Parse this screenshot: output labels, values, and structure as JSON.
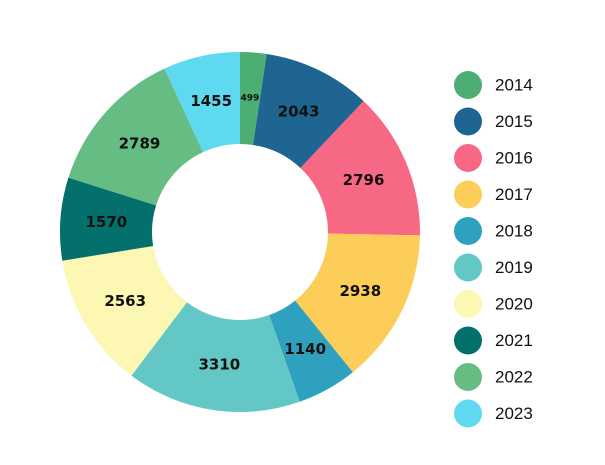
{
  "chart_data": {
    "type": "pie",
    "donut": true,
    "title": "",
    "legend_position": "right",
    "slices": [
      {
        "label": "2014",
        "value": 499,
        "color": "#4cae72"
      },
      {
        "label": "2015",
        "value": 2043,
        "color": "#1e6591"
      },
      {
        "label": "2016",
        "value": 2796,
        "color": "#f66884"
      },
      {
        "label": "2017",
        "value": 2938,
        "color": "#fdcd5a"
      },
      {
        "label": "2018",
        "value": 1140,
        "color": "#2ea1be"
      },
      {
        "label": "2019",
        "value": 3310,
        "color": "#63c8c5"
      },
      {
        "label": "2020",
        "value": 2563,
        "color": "#fcf8b4"
      },
      {
        "label": "2021",
        "value": 1570,
        "color": "#04706b"
      },
      {
        "label": "2022",
        "value": 2789,
        "color": "#66bd83"
      },
      {
        "label": "2023",
        "value": 1455,
        "color": "#5ed9ef"
      }
    ]
  }
}
